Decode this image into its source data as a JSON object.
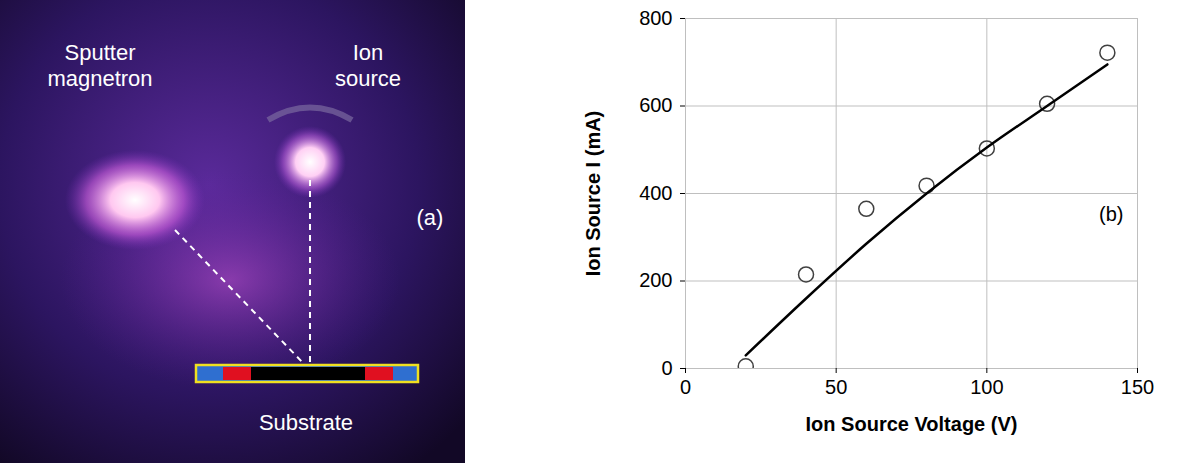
{
  "photo": {
    "labels": {
      "magnetron": "Sputter magnetron",
      "ion_source": "Ion source",
      "panel": "(a)",
      "substrate": "Substrate"
    }
  },
  "chart_data": {
    "type": "scatter",
    "x_label": "Ion Source Voltage (V)",
    "y_label": "Ion Source I (mA)",
    "annotations": [
      "(b)"
    ],
    "x": [
      20,
      40,
      60,
      80,
      100,
      120,
      140
    ],
    "series": [
      {
        "type": "scatter",
        "marker": "circle",
        "color": "#404040",
        "values": [
          5,
          215,
          365,
          418,
          503,
          605,
          722
        ]
      },
      {
        "type": "line",
        "line_style": "solid",
        "color": "#000000",
        "values": [
          30,
          160,
          285,
          400,
          505,
          600,
          695
        ]
      }
    ],
    "xlim": [
      0,
      150
    ],
    "xticks": [
      0,
      50,
      100,
      150
    ],
    "ylim": [
      0,
      800
    ],
    "yticks": [
      0,
      200,
      400,
      600,
      800
    ],
    "grid": true
  }
}
